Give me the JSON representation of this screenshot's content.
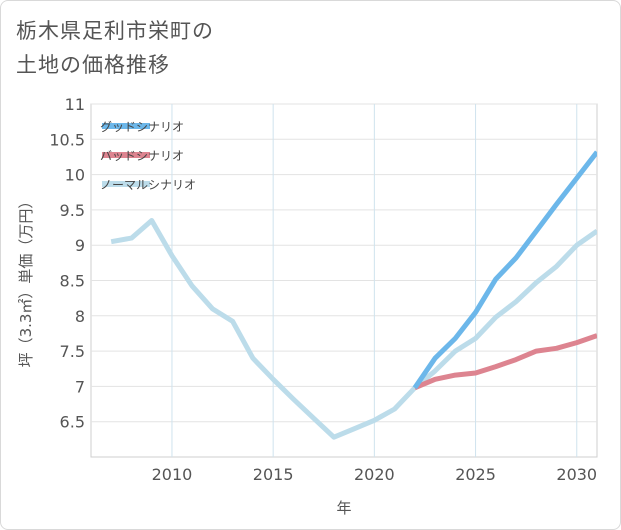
{
  "title_lines": [
    "栃木県足利市栄町の",
    "土地の価格推移"
  ],
  "chart_data": {
    "type": "line",
    "xlabel": "年",
    "ylabel": "坪（3.3㎡）単価（万円）",
    "xlim": [
      2006,
      2031
    ],
    "ylim": [
      6,
      11
    ],
    "x_ticks": [
      2010,
      2015,
      2020,
      2025,
      2030
    ],
    "y_ticks": [
      6.5,
      7,
      7.5,
      8,
      8.5,
      9,
      9.5,
      10,
      10.5,
      11
    ],
    "y_tick_labels": [
      "6.5",
      "7",
      "7.5",
      "8",
      "8.5",
      "9",
      "9.5",
      "10",
      "10.5",
      "11"
    ],
    "grid": true,
    "legend_position": "top-left",
    "series": [
      {
        "name": "グッドシナリオ",
        "color": "#6cb7ea",
        "x": [
          2022,
          2023,
          2024,
          2025,
          2026,
          2027,
          2028,
          2029,
          2030,
          2031
        ],
        "values": [
          6.98,
          7.4,
          7.68,
          8.05,
          8.52,
          8.82,
          9.2,
          9.58,
          9.95,
          10.32
        ]
      },
      {
        "name": "バッドシナリオ",
        "color": "#dd8490",
        "x": [
          2022,
          2023,
          2024,
          2025,
          2026,
          2027,
          2028,
          2029,
          2030,
          2031
        ],
        "values": [
          6.98,
          7.1,
          7.16,
          7.19,
          7.28,
          7.38,
          7.5,
          7.54,
          7.62,
          7.72
        ]
      },
      {
        "name": "ノーマルシナリオ",
        "color": "#bcdcea",
        "x": [
          2007,
          2008,
          2009,
          2010,
          2011,
          2012,
          2013,
          2014,
          2015,
          2016,
          2017,
          2018,
          2019,
          2020,
          2021,
          2022,
          2023,
          2024,
          2025,
          2026,
          2027,
          2028,
          2029,
          2030,
          2031
        ],
        "values": [
          9.05,
          9.1,
          9.35,
          8.85,
          8.42,
          8.1,
          7.92,
          7.4,
          7.1,
          6.82,
          6.55,
          6.28,
          6.4,
          6.52,
          6.68,
          6.98,
          7.22,
          7.5,
          7.68,
          7.98,
          8.2,
          8.47,
          8.7,
          9.0,
          9.2
        ]
      }
    ]
  }
}
